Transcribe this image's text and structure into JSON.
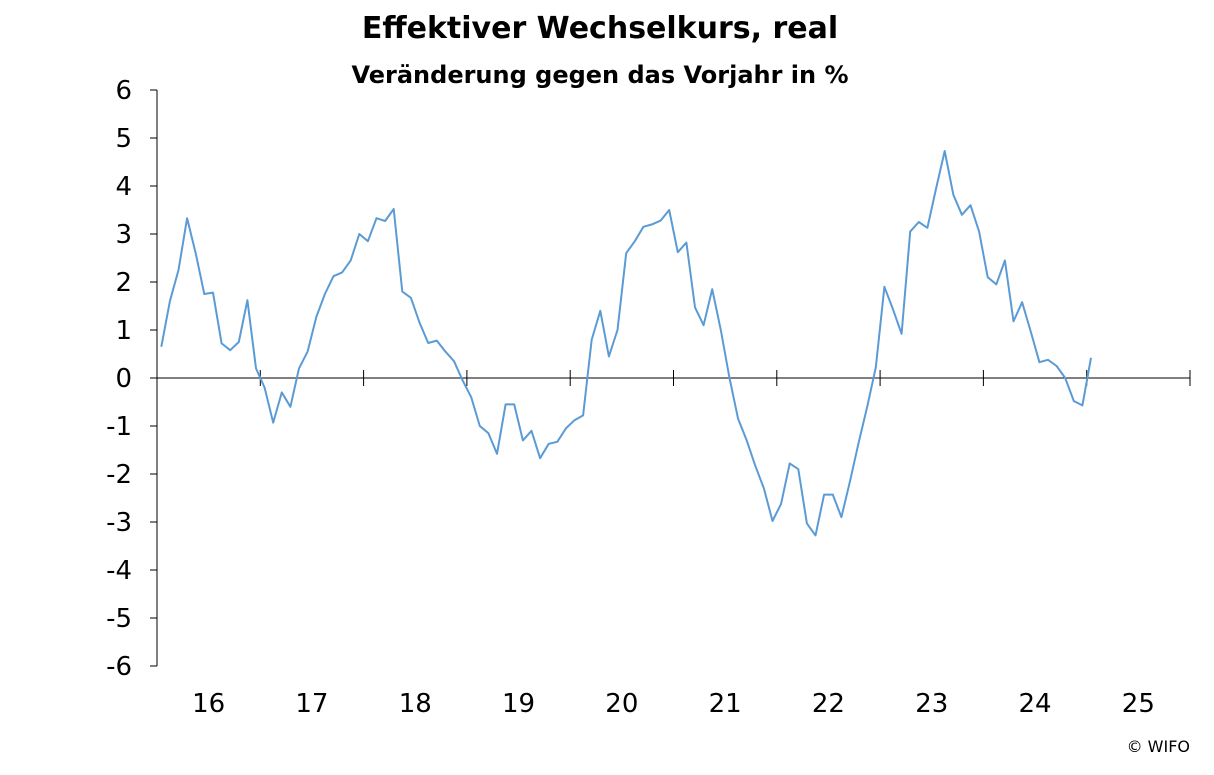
{
  "chart_data": {
    "type": "line",
    "title": "Effektiver Wechselkurs, real",
    "subtitle": "Veränderung gegen das Vorjahr in %",
    "xlabel": "",
    "ylabel": "",
    "ylim": [
      -6,
      6
    ],
    "yticks": [
      "6",
      "5",
      "4",
      "3",
      "2",
      "1",
      "0",
      "-1",
      "-2",
      "-3",
      "-4",
      "-5",
      "-6"
    ],
    "x_categories": [
      "16",
      "17",
      "18",
      "19",
      "20",
      "21",
      "22",
      "23",
      "24",
      "25"
    ],
    "grid": false,
    "legend": "none",
    "line_color": "#5b9bd5",
    "series": [
      {
        "start": "2016-01",
        "values": [
          0.65,
          1.6,
          2.25,
          3.33,
          2.6,
          1.75,
          1.78,
          0.72,
          0.58,
          0.75,
          1.62,
          0.2,
          -0.2,
          -0.93,
          -0.3,
          -0.6,
          0.2,
          0.55,
          1.27,
          1.75,
          2.12,
          2.2,
          2.45,
          3.0,
          2.85,
          3.33,
          3.27,
          3.52,
          1.8,
          1.67,
          1.15,
          0.73,
          0.78,
          0.55,
          0.35,
          -0.05,
          -0.4,
          -1.0,
          -1.15,
          -1.58,
          -0.55,
          -0.55,
          -1.3,
          -1.1,
          -1.67,
          -1.37,
          -1.33,
          -1.05,
          -0.88,
          -0.78,
          0.8,
          1.4,
          0.45,
          1.0,
          2.6,
          2.85,
          3.15,
          3.2,
          3.28,
          3.5,
          2.62,
          2.82,
          1.47,
          1.1,
          1.85,
          1.0,
          0.0,
          -0.85,
          -1.3,
          -1.83,
          -2.3,
          -2.98,
          -2.62,
          -1.78,
          -1.9,
          -3.03,
          -3.28,
          -2.43,
          -2.43,
          -2.9,
          -2.15,
          -1.35,
          -0.6,
          0.22,
          1.9,
          1.43,
          0.92,
          3.05,
          3.25,
          3.13,
          3.95,
          4.73,
          3.82,
          3.4,
          3.6,
          3.05,
          2.1,
          1.95,
          2.45,
          1.18,
          1.58,
          0.97,
          0.33,
          0.38,
          0.25,
          0.0,
          -0.48,
          -0.57,
          0.42
        ]
      }
    ]
  },
  "footer": {
    "credit": "© WIFO"
  }
}
